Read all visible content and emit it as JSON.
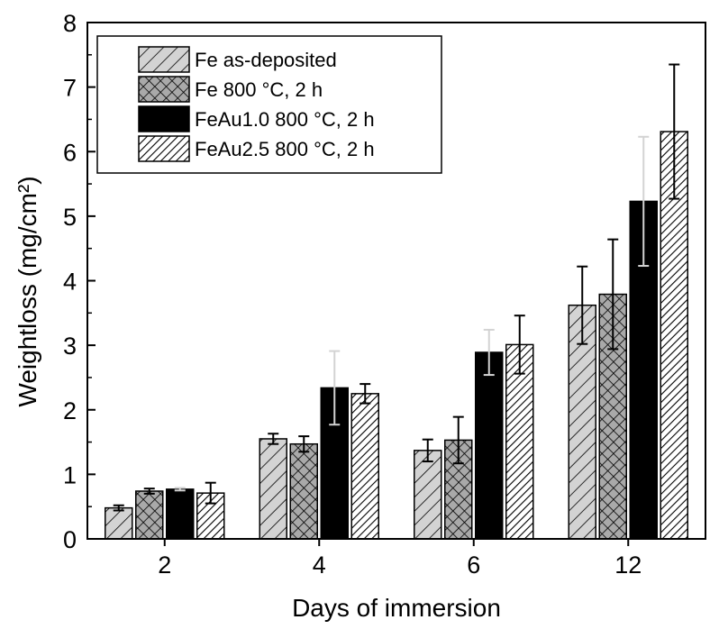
{
  "chart_data": {
    "type": "bar",
    "title": "",
    "xlabel": "Days of immersion",
    "ylabel": "Weightloss (mg/cm²)",
    "categories": [
      "2",
      "4",
      "6",
      "12"
    ],
    "ylim": [
      0,
      8
    ],
    "yticks": [
      0,
      1,
      2,
      3,
      4,
      5,
      6,
      7,
      8
    ],
    "grid": false,
    "legend_position": "top-left",
    "series": [
      {
        "name": "Fe as-deposited",
        "pattern": "diagonal-light",
        "fill": "#d3d3d3",
        "values": [
          0.48,
          1.55,
          1.37,
          3.62
        ],
        "errors": [
          0.04,
          0.08,
          0.17,
          0.6
        ],
        "error_color": "#000000"
      },
      {
        "name": "Fe 800 °C, 2 h",
        "pattern": "crosshatch",
        "fill": "#a9a9a9",
        "values": [
          0.74,
          1.47,
          1.53,
          3.79
        ],
        "errors": [
          0.04,
          0.12,
          0.36,
          0.85
        ],
        "error_color": "#000000"
      },
      {
        "name": "FeAu1.0 800 °C, 2 h",
        "pattern": "solid",
        "fill": "#000000",
        "values": [
          0.77,
          2.34,
          2.89,
          5.23
        ],
        "errors": [
          0.02,
          0.57,
          0.35,
          1.0
        ],
        "error_color": "#d3d3d3"
      },
      {
        "name": "FeAu2.5 800 °C, 2 h",
        "pattern": "diagonal-dense",
        "fill": "#ffffff",
        "values": [
          0.71,
          2.25,
          3.01,
          6.31
        ],
        "errors": [
          0.16,
          0.15,
          0.45,
          1.04
        ],
        "error_color": "#000000"
      }
    ]
  }
}
